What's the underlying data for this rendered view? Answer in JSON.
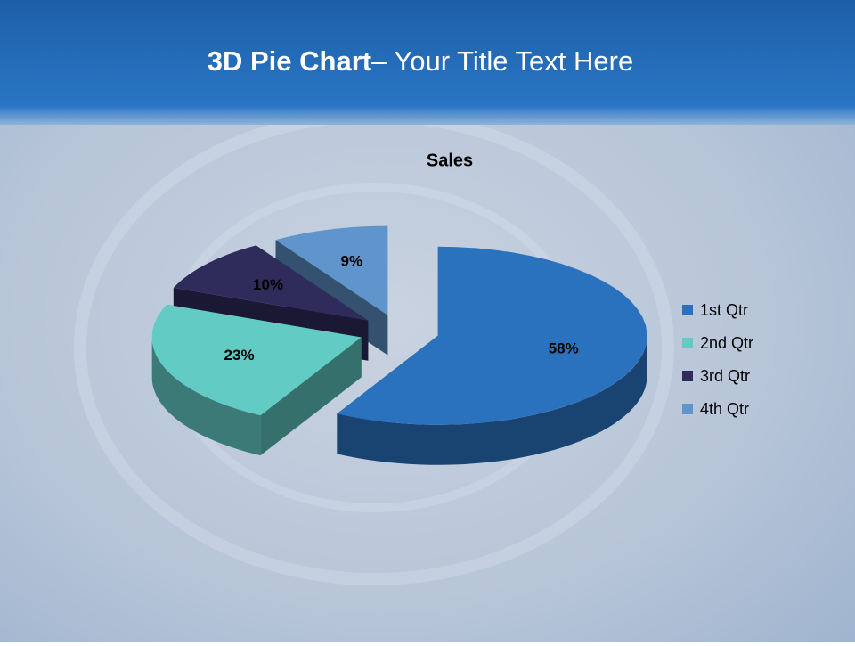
{
  "slide_title": {
    "bold": "3D Pie Chart",
    "rest": "– Your Title Text Here"
  },
  "chart_data": {
    "type": "pie3d",
    "title": "Sales",
    "categories": [
      "1st Qtr",
      "2nd Qtr",
      "3rd Qtr",
      "4th Qtr"
    ],
    "values": [
      58,
      23,
      10,
      9
    ],
    "value_labels": [
      "58%",
      "23%",
      "10%",
      "9%"
    ],
    "colors": [
      "#2a72bd",
      "#62cbc4",
      "#2f2c5c",
      "#5f95cc"
    ],
    "legend": "right"
  }
}
